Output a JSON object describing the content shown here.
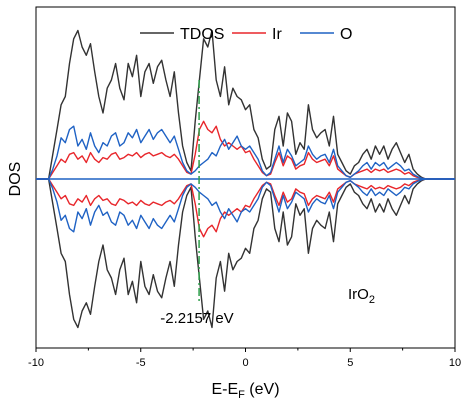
{
  "chart_data": {
    "type": "line",
    "title": "",
    "xlabel_main": "E-E",
    "xlabel_sub": "F",
    "xlabel_tail": " (eV)",
    "ylabel": "DOS",
    "xlim": [
      -10,
      10
    ],
    "ylim": [
      -10,
      10
    ],
    "xticks": [
      -10,
      -5,
      0,
      5,
      10
    ],
    "xtick_labels": [
      "-10",
      "-5",
      "0",
      "5",
      "10"
    ],
    "grid": false,
    "legend_position": "top-center",
    "series": [
      {
        "name": "TDOS",
        "color": "#333333",
        "x": [
          -10,
          -9.4,
          -9.2,
          -9.0,
          -8.8,
          -8.6,
          -8.4,
          -8.2,
          -8.0,
          -7.8,
          -7.6,
          -7.4,
          -7.2,
          -7.0,
          -6.8,
          -6.6,
          -6.4,
          -6.2,
          -6.0,
          -5.8,
          -5.6,
          -5.4,
          -5.2,
          -5.0,
          -4.8,
          -4.6,
          -4.4,
          -4.2,
          -4.0,
          -3.8,
          -3.6,
          -3.4,
          -3.2,
          -3.0,
          -2.8,
          -2.6,
          -2.4,
          -2.2,
          -2.0,
          -1.8,
          -1.6,
          -1.4,
          -1.2,
          -1.0,
          -0.8,
          -0.6,
          -0.4,
          -0.2,
          0.0,
          0.2,
          0.4,
          0.6,
          0.8,
          1.0,
          1.2,
          1.4,
          1.6,
          1.8,
          2.0,
          2.2,
          2.4,
          2.6,
          2.8,
          3.0,
          3.2,
          3.4,
          3.6,
          3.8,
          4.0,
          4.2,
          4.4,
          4.6,
          4.8,
          5.0,
          5.2,
          5.4,
          5.6,
          5.8,
          6.0,
          6.2,
          6.4,
          6.6,
          6.8,
          7.0,
          7.2,
          7.4,
          7.6,
          7.8,
          8.0,
          8.2,
          8.4,
          8.6,
          10
        ],
        "values": [
          0,
          0,
          1.5,
          3.0,
          4.5,
          5.0,
          7.0,
          8.5,
          9.0,
          8.0,
          7.5,
          8.2,
          6.5,
          5.0,
          4.0,
          5.5,
          6.0,
          7.0,
          5.5,
          4.8,
          7.0,
          6.2,
          7.5,
          5.0,
          6.5,
          7.0,
          5.8,
          6.8,
          7.2,
          6.0,
          5.0,
          6.5,
          4.0,
          2.0,
          1.0,
          0.5,
          3.5,
          6.0,
          8.5,
          8.0,
          9.0,
          6.0,
          5.0,
          6.8,
          4.5,
          5.5,
          5.0,
          4.8,
          4.2,
          4.5,
          3.0,
          2.5,
          1.2,
          0.6,
          0.8,
          3.0,
          3.8,
          2.0,
          4.0,
          3.5,
          1.5,
          2.2,
          1.8,
          4.5,
          3.0,
          2.5,
          2.8,
          3.0,
          2.0,
          3.8,
          1.5,
          1.0,
          0.5,
          0.3,
          0.8,
          1.0,
          1.5,
          1.8,
          1.2,
          2.0,
          1.5,
          2.0,
          1.2,
          1.8,
          2.2,
          1.6,
          1.0,
          1.5,
          0.6,
          0.3,
          0.1,
          0,
          0
        ]
      },
      {
        "name": "Ir",
        "color": "#e8262b",
        "x": [
          -10,
          -9.4,
          -9.2,
          -9.0,
          -8.8,
          -8.6,
          -8.4,
          -8.2,
          -8.0,
          -7.8,
          -7.6,
          -7.4,
          -7.2,
          -7.0,
          -6.8,
          -6.6,
          -6.4,
          -6.2,
          -6.0,
          -5.8,
          -5.6,
          -5.4,
          -5.2,
          -5.0,
          -4.8,
          -4.6,
          -4.4,
          -4.2,
          -4.0,
          -3.8,
          -3.6,
          -3.4,
          -3.2,
          -3.0,
          -2.8,
          -2.6,
          -2.4,
          -2.2,
          -2.0,
          -1.8,
          -1.6,
          -1.4,
          -1.2,
          -1.0,
          -0.8,
          -0.6,
          -0.4,
          -0.2,
          0.0,
          0.2,
          0.4,
          0.6,
          0.8,
          1.0,
          1.2,
          1.4,
          1.6,
          1.8,
          2.0,
          2.2,
          2.4,
          2.6,
          2.8,
          3.0,
          3.2,
          3.4,
          3.6,
          3.8,
          4.0,
          4.2,
          4.4,
          4.6,
          4.8,
          5.0,
          5.2,
          5.4,
          5.6,
          5.8,
          6.0,
          6.2,
          6.4,
          6.6,
          6.8,
          7.0,
          7.2,
          7.4,
          7.6,
          7.8,
          8.0,
          8.2,
          8.4,
          8.6,
          10
        ],
        "values": [
          0,
          0,
          0.4,
          0.8,
          1.2,
          1.0,
          1.5,
          1.6,
          1.2,
          1.4,
          1.0,
          1.6,
          1.2,
          1.0,
          1.3,
          1.2,
          1.5,
          1.6,
          1.2,
          1.3,
          1.5,
          1.4,
          1.6,
          1.3,
          1.5,
          1.6,
          1.4,
          1.5,
          1.6,
          1.4,
          1.3,
          1.5,
          1.2,
          0.8,
          0.4,
          0.3,
          1.5,
          3.0,
          3.5,
          3.0,
          2.8,
          3.2,
          2.4,
          2.0,
          2.2,
          2.0,
          1.8,
          2.0,
          1.6,
          1.7,
          1.2,
          0.8,
          0.4,
          0.2,
          0.3,
          1.0,
          1.6,
          0.8,
          1.4,
          1.2,
          0.6,
          0.8,
          0.9,
          1.6,
          1.2,
          1.0,
          1.1,
          1.2,
          0.8,
          1.4,
          0.6,
          0.4,
          0.2,
          0.1,
          0.3,
          0.4,
          0.5,
          0.6,
          0.4,
          0.6,
          0.5,
          0.6,
          0.4,
          0.5,
          0.6,
          0.5,
          0.3,
          0.4,
          0.2,
          0.1,
          0.05,
          0,
          0
        ]
      },
      {
        "name": "O",
        "color": "#1f62c4",
        "x": [
          -10,
          -9.4,
          -9.2,
          -9.0,
          -8.8,
          -8.6,
          -8.4,
          -8.2,
          -8.0,
          -7.8,
          -7.6,
          -7.4,
          -7.2,
          -7.0,
          -6.8,
          -6.6,
          -6.4,
          -6.2,
          -6.0,
          -5.8,
          -5.6,
          -5.4,
          -5.2,
          -5.0,
          -4.8,
          -4.6,
          -4.4,
          -4.2,
          -4.0,
          -3.8,
          -3.6,
          -3.4,
          -3.2,
          -3.0,
          -2.8,
          -2.6,
          -2.4,
          -2.2,
          -2.0,
          -1.8,
          -1.6,
          -1.4,
          -1.2,
          -1.0,
          -0.8,
          -0.6,
          -0.4,
          -0.2,
          0.0,
          0.2,
          0.4,
          0.6,
          0.8,
          1.0,
          1.2,
          1.4,
          1.6,
          1.8,
          2.0,
          2.2,
          2.4,
          2.6,
          2.8,
          3.0,
          3.2,
          3.4,
          3.6,
          3.8,
          4.0,
          4.2,
          4.4,
          4.6,
          4.8,
          5.0,
          5.2,
          5.4,
          5.6,
          5.8,
          6.0,
          6.2,
          6.4,
          6.6,
          6.8,
          7.0,
          7.2,
          7.4,
          7.6,
          7.8,
          8.0,
          8.2,
          8.4,
          8.6,
          10
        ],
        "values": [
          0,
          0,
          0.6,
          1.4,
          2.5,
          2.2,
          3.0,
          3.2,
          2.0,
          2.4,
          1.8,
          2.8,
          2.0,
          1.6,
          2.2,
          2.0,
          2.6,
          2.8,
          2.0,
          2.2,
          2.8,
          2.5,
          3.0,
          2.2,
          2.6,
          3.0,
          2.4,
          2.8,
          3.0,
          2.6,
          2.2,
          2.6,
          1.8,
          1.0,
          0.5,
          0.3,
          0.5,
          0.8,
          1.0,
          1.2,
          1.6,
          1.4,
          2.0,
          2.4,
          1.8,
          2.2,
          2.6,
          2.0,
          1.8,
          2.0,
          1.6,
          1.2,
          0.5,
          0.2,
          0.4,
          1.2,
          2.0,
          1.0,
          1.8,
          1.4,
          0.8,
          1.0,
          1.2,
          2.0,
          1.5,
          1.2,
          1.4,
          1.5,
          1.0,
          1.8,
          0.8,
          0.5,
          0.2,
          0.1,
          0.3,
          0.5,
          0.8,
          1.0,
          0.6,
          1.0,
          0.8,
          1.0,
          0.6,
          0.8,
          1.0,
          0.8,
          0.5,
          0.6,
          0.3,
          0.15,
          0.05,
          0,
          0
        ]
      }
    ],
    "annotations": {
      "vline_x": -2.2157,
      "vline_color": "#2e9e4a",
      "vline_label": "-2.2157 eV",
      "formula_main": "IrO",
      "formula_sub": "2"
    }
  }
}
